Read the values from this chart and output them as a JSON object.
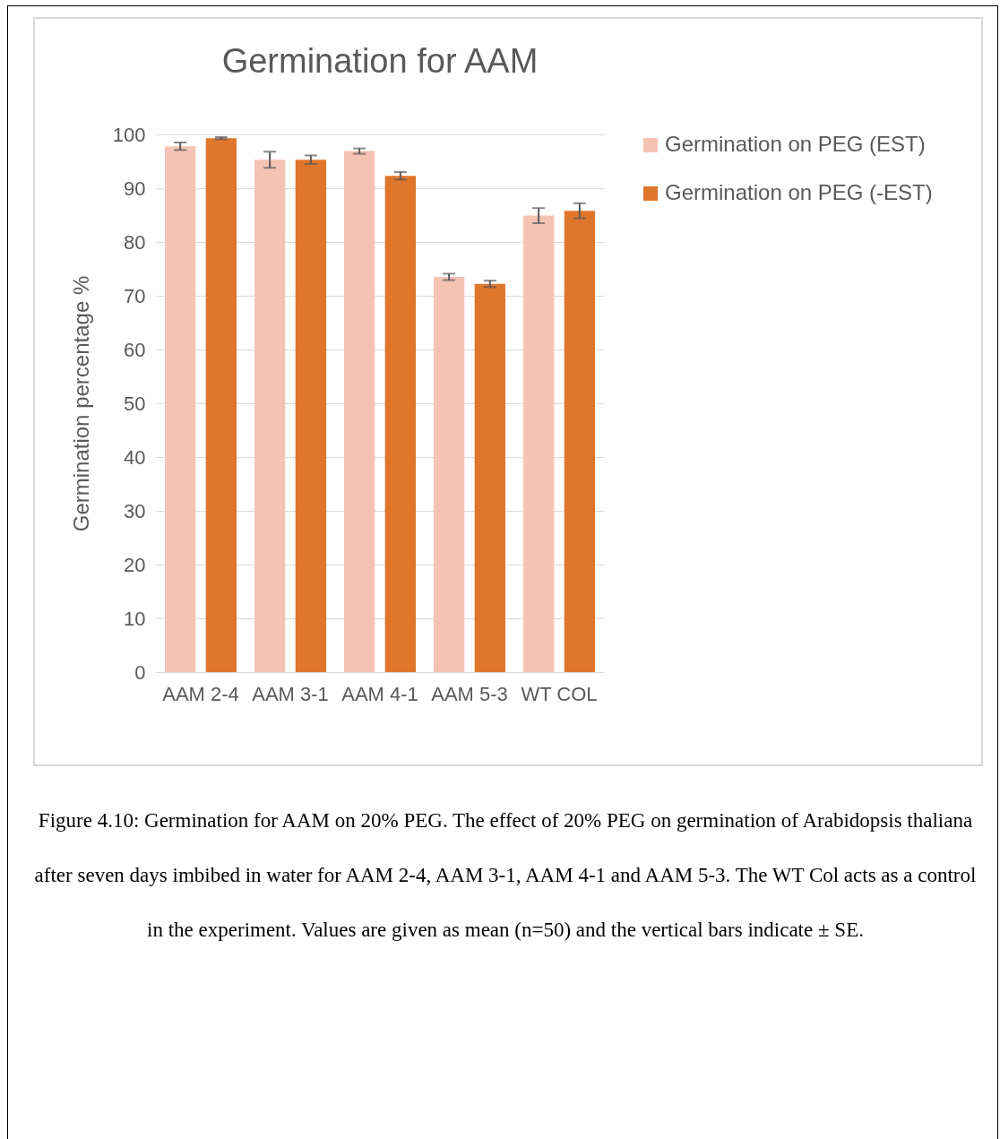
{
  "chart_data": {
    "type": "bar",
    "title": "Germination for AAM",
    "ylabel": "Germination percentage %",
    "categories": [
      "AAM 2-4",
      "AAM 3-1",
      "AAM 4-1",
      "AAM 5-3",
      "WT COL"
    ],
    "series": [
      {
        "name": "Germination on  PEG (EST)",
        "color": "#f5c3b3",
        "values": [
          97.8,
          95.3,
          96.9,
          73.5,
          84.9
        ],
        "errors": [
          0.7,
          1.5,
          0.5,
          0.6,
          1.4
        ]
      },
      {
        "name": "Germination on PEG (-EST)",
        "color": "#e0762c",
        "values": [
          99.3,
          95.3,
          92.3,
          72.2,
          85.8
        ],
        "errors": [
          0.2,
          0.8,
          0.7,
          0.6,
          1.4
        ]
      }
    ],
    "ylim": [
      0,
      100
    ],
    "yticks": [
      0,
      10,
      20,
      30,
      40,
      50,
      60,
      70,
      80,
      90,
      100
    ],
    "grid": "y",
    "legend": "right",
    "annotations": [
      "Figure 4.10: Germination for AAM on 20% PEG. The effect of 20% PEG on germination of Arabidopsis thaliana after seven days imbibed in water for AAM 2-4, AAM 3-1, AAM  4-1 and AAM 5-3. The WT Col acts as a control in the experiment. Values are given as mean (n=50) and the vertical bars indicate ± SE."
    ]
  }
}
